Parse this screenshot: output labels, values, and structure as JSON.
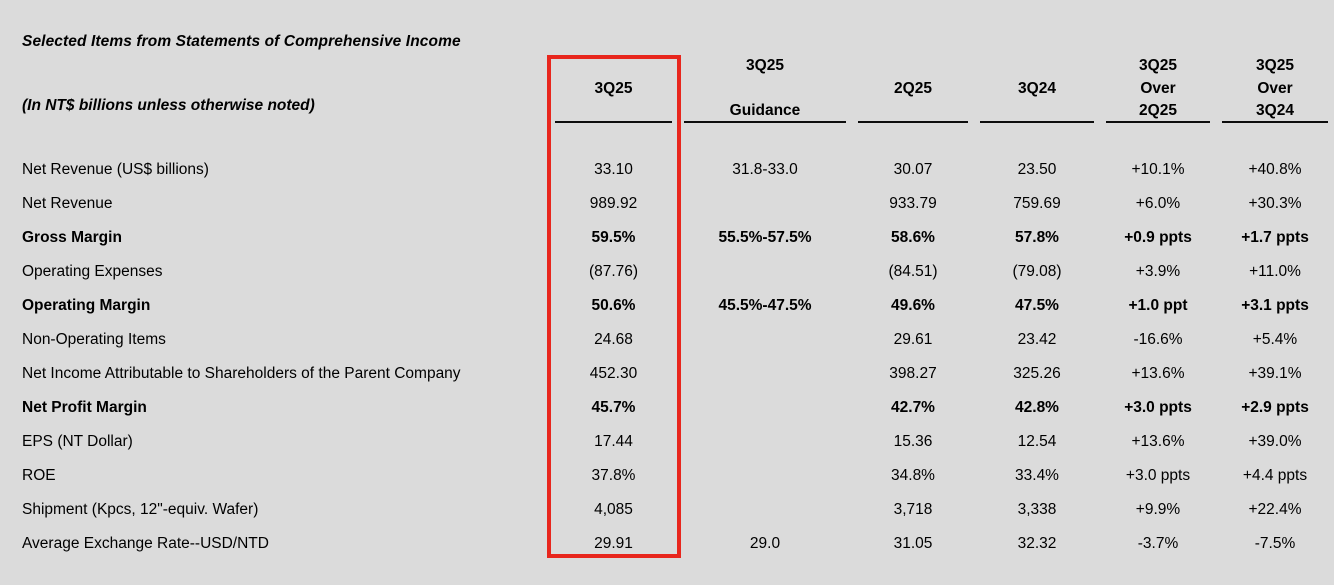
{
  "page": {
    "title": "Selected Items from Statements of Comprehensive Income",
    "unit_note": "(In NT$ billions unless otherwise noted)"
  },
  "table": {
    "highlight_color": "#e8261d",
    "rule_color": "#0d0d0d",
    "background_color": "#dbdbdb",
    "text_color": "#000000",
    "columns": [
      {
        "id": "3q25",
        "lines": [
          "3Q25"
        ],
        "highlighted": true
      },
      {
        "id": "3q25-guidance",
        "lines": [
          "3Q25",
          "Guidance"
        ],
        "highlighted": false
      },
      {
        "id": "2q25",
        "lines": [
          "2Q25"
        ],
        "highlighted": false
      },
      {
        "id": "3q24",
        "lines": [
          "3Q24"
        ],
        "highlighted": false
      },
      {
        "id": "3q25-over-2q25",
        "lines": [
          "3Q25",
          "Over",
          "2Q25"
        ],
        "highlighted": false
      },
      {
        "id": "3q25-over-3q24",
        "lines": [
          "3Q25",
          "Over",
          "3Q24"
        ],
        "highlighted": false
      }
    ],
    "rows": [
      {
        "label": "Net Revenue (US$ billions)",
        "bold": false,
        "values": [
          "33.10",
          "31.8-33.0",
          "30.07",
          "23.50",
          "+10.1%",
          "+40.8%"
        ]
      },
      {
        "label": "Net Revenue",
        "bold": false,
        "values": [
          "989.92",
          "",
          "933.79",
          "759.69",
          "+6.0%",
          "+30.3%"
        ]
      },
      {
        "label": "Gross Margin",
        "bold": true,
        "values": [
          "59.5%",
          "55.5%-57.5%",
          "58.6%",
          "57.8%",
          "+0.9 ppts",
          "+1.7 ppts"
        ]
      },
      {
        "label": "Operating Expenses",
        "bold": false,
        "values": [
          "(87.76)",
          "",
          "(84.51)",
          "(79.08)",
          "+3.9%",
          "+11.0%"
        ]
      },
      {
        "label": "Operating Margin",
        "bold": true,
        "values": [
          "50.6%",
          "45.5%-47.5%",
          "49.6%",
          "47.5%",
          "+1.0 ppt",
          "+3.1 ppts"
        ]
      },
      {
        "label": "Non-Operating Items",
        "bold": false,
        "values": [
          "24.68",
          "",
          "29.61",
          "23.42",
          "-16.6%",
          "+5.4%"
        ]
      },
      {
        "label": "Net Income Attributable to Shareholders of the Parent Company",
        "bold": false,
        "values": [
          "452.30",
          "",
          "398.27",
          "325.26",
          "+13.6%",
          "+39.1%"
        ]
      },
      {
        "label": "Net Profit Margin",
        "bold": true,
        "values": [
          "45.7%",
          "",
          "42.7%",
          "42.8%",
          "+3.0 ppts",
          "+2.9 ppts"
        ]
      },
      {
        "label": "EPS (NT Dollar)",
        "bold": false,
        "values": [
          "17.44",
          "",
          "15.36",
          "12.54",
          "+13.6%",
          "+39.0%"
        ]
      },
      {
        "label": "ROE",
        "bold": false,
        "values": [
          "37.8%",
          "",
          "34.8%",
          "33.4%",
          "+3.0 ppts",
          "+4.4 ppts"
        ]
      },
      {
        "label": "Shipment (Kpcs, 12\"-equiv. Wafer)",
        "bold": false,
        "values": [
          "4,085",
          "",
          "3,718",
          "3,338",
          "+9.9%",
          "+22.4%"
        ]
      },
      {
        "label": "Average Exchange Rate--USD/NTD",
        "bold": false,
        "values": [
          "29.91",
          "29.0",
          "31.05",
          "32.32",
          "-3.7%",
          "-7.5%"
        ]
      }
    ]
  }
}
